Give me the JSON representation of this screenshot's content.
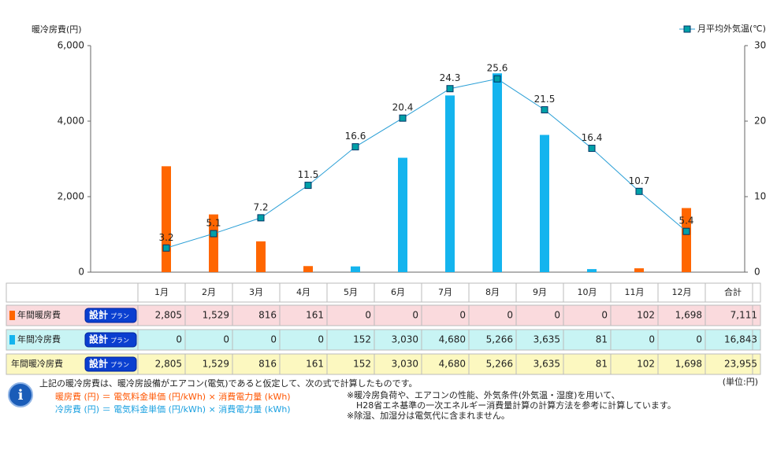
{
  "chart_data": {
    "type": "bar",
    "y_label": "暖冷房費(円)",
    "categories": [
      "1月",
      "2月",
      "3月",
      "4月",
      "5月",
      "6月",
      "7月",
      "8月",
      "9月",
      "10月",
      "11月",
      "12月"
    ],
    "ylim": [
      0,
      6000
    ],
    "yticks": [
      0,
      {
        "value": 2000,
        "label": "2,000"
      },
      {
        "value": 4000,
        "label": "4,000"
      },
      {
        "value": 6000,
        "label": "6,000"
      }
    ],
    "y2lim": [
      0,
      30
    ],
    "y2ticks": [
      0,
      10,
      20,
      30
    ],
    "series": [
      {
        "name": "年間暖房費",
        "color": "#ff6600",
        "values": [
          2805,
          1529,
          816,
          161,
          0,
          0,
          0,
          0,
          0,
          0,
          102,
          1698
        ],
        "value_labels": [
          "2,805",
          "1,529",
          "816",
          "161",
          "0",
          "0",
          "0",
          "0",
          "0",
          "0",
          "102",
          "1,698"
        ]
      },
      {
        "name": "年間冷房費",
        "color": "#14b4ee",
        "values": [
          0,
          0,
          0,
          0,
          152,
          3030,
          4680,
          5266,
          3635,
          81,
          0,
          0
        ],
        "value_labels": [
          "0",
          "0",
          "0",
          "0",
          "152",
          "3,030",
          "4,680",
          "5,266",
          "3,635",
          "81",
          "0",
          "0"
        ]
      },
      {
        "name": "月平均外気温(℃)",
        "type": "line",
        "axis": "y2",
        "color": "#2a9fd6",
        "marker_color": "#00a0a8",
        "values": [
          3.2,
          5.1,
          7.2,
          11.5,
          16.6,
          20.4,
          24.3,
          25.6,
          21.5,
          16.4,
          10.7,
          5.4
        ]
      }
    ]
  },
  "table": {
    "badge": {
      "main": "設計",
      "sub": "プラン"
    },
    "total_header": "合計",
    "totals": [
      {
        "value": 7111,
        "label": "7,111"
      },
      {
        "value": 16843,
        "label": "16,843"
      },
      {
        "value": 23955,
        "label": "23,955"
      }
    ],
    "sum_row": {
      "name": "年間暖冷房費",
      "values": [
        2805,
        1529,
        816,
        161,
        152,
        3030,
        4680,
        5266,
        3635,
        81,
        102,
        1698
      ],
      "value_labels": [
        "2,805",
        "1,529",
        "816",
        "161",
        "152",
        "3,030",
        "4,680",
        "5,266",
        "3,635",
        "81",
        "102",
        "1,698"
      ]
    },
    "unit": "(単位:円)"
  },
  "notes": {
    "intro": "上記の暖冷房費は、暖冷房設備がエアコン(電気)であると仮定して、次の式で計算したものです。",
    "heating_formula": "暖房費 (円) ＝ 電気料金単価 (円/kWh) × 消費電力量 (kWh)",
    "cooling_formula": "冷房費 (円) ＝ 電気料金単価 (円/kWh) × 消費電力量 (kWh)",
    "remark1": "※暖冷房負荷や、エアコンの性能、外気条件(外気温・湿度)を用いて、",
    "remark1b": "H28省エネ基準の一次エネルギー消費量計算の計算方法を参考に計算しています。",
    "remark2": "※除湿、加湿分は電気代に含まれません。"
  }
}
